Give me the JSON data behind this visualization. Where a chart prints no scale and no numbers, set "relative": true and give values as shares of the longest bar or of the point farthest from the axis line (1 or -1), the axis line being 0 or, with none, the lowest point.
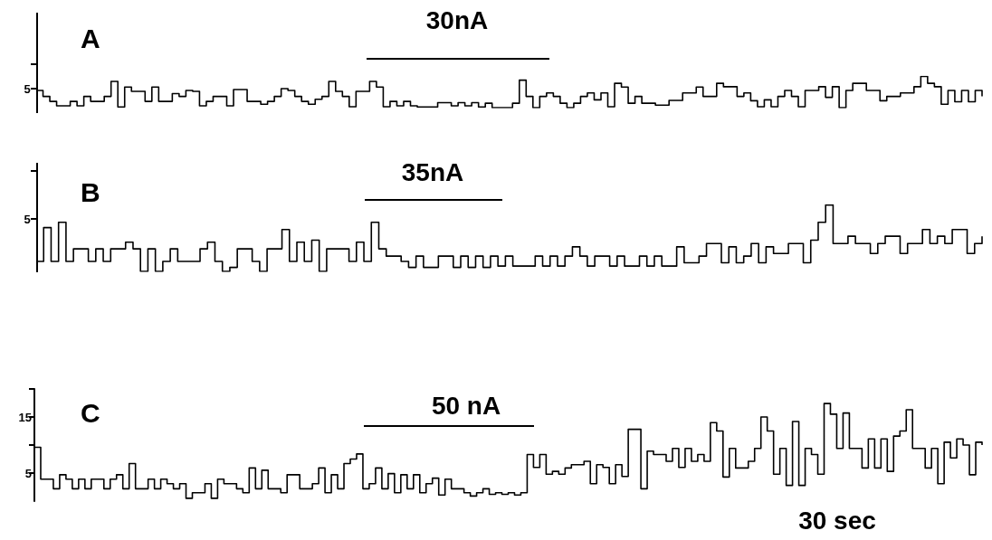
{
  "chart_data": [
    {
      "type": "step",
      "title": "A",
      "annotations": [
        "30nA",
        "5"
      ],
      "marker": "none",
      "grid": false,
      "tick_labels": false,
      "relative": true,
      "categories": [
        null,
        null,
        null,
        null,
        null,
        null,
        null,
        null,
        null,
        null,
        null,
        null,
        null,
        null,
        null,
        null,
        null,
        null,
        null,
        null,
        null,
        null,
        null,
        null,
        null,
        null,
        null,
        null,
        null,
        null,
        null,
        null,
        null,
        null,
        null,
        null,
        null,
        null,
        null,
        null,
        null,
        null,
        null,
        null,
        null,
        null,
        null,
        null,
        null,
        null,
        null,
        null,
        null,
        null,
        null,
        null,
        null,
        null,
        null,
        null,
        null,
        null,
        null,
        null,
        null,
        null,
        null,
        null,
        null,
        null,
        null,
        null,
        null,
        null,
        null,
        null,
        null,
        null,
        null,
        null,
        null,
        null,
        null,
        null,
        null,
        null,
        null,
        null,
        null,
        null,
        null,
        null,
        null,
        null,
        null,
        null,
        null,
        null,
        null,
        null,
        null,
        null,
        null,
        null,
        null,
        null,
        null,
        null,
        null,
        null,
        null,
        null,
        null,
        null,
        null,
        null,
        null,
        null,
        null,
        null,
        null,
        null,
        null,
        null,
        null,
        null,
        null,
        null,
        null,
        null,
        null,
        null,
        null,
        null,
        null,
        null,
        null,
        null,
        null,
        null
      ],
      "series": [
        {
          "color": "#000000",
          "values": [
            0.55,
            0.36,
            0.2,
            0.06,
            0.06,
            0.2,
            0.06,
            0.36,
            0.2,
            0.2,
            0.36,
            0.84,
            0.02,
            0.66,
            0.52,
            0.52,
            0.2,
            0.66,
            0.2,
            0.2,
            0.45,
            0.36,
            0.55,
            0.52,
            0.06,
            0.2,
            0.36,
            0.36,
            0.06,
            0.58,
            0.58,
            0.2,
            0.2,
            0.11,
            0.2,
            0.36,
            0.61,
            0.55,
            0.36,
            0.2,
            0.11,
            0.27,
            0.36,
            0.84,
            0.52,
            0.36,
            0.03,
            0.52,
            0.52,
            0.84,
            0.66,
            0.03,
            0.2,
            0.06,
            0.2,
            0.06,
            0.02,
            0.02,
            0.02,
            0.16,
            0.16,
            0.06,
            0.16,
            0.06,
            0.16,
            0.02,
            0.14,
            0,
            0,
            0,
            0.14,
            0.88,
            0.36,
            0,
            0.36,
            0.47,
            0.36,
            0.14,
            0,
            0.14,
            0.36,
            0.47,
            0.25,
            0.47,
            0.03,
            0.78,
            0.66,
            0.14,
            0.36,
            0.14,
            0.14,
            0.08,
            0.08,
            0.23,
            0.23,
            0.47,
            0.47,
            0.66,
            0.36,
            0.36,
            0.78,
            0.67,
            0.67,
            0.36,
            0.47,
            0.22,
            0.03,
            0.25,
            0.03,
            0.36,
            0.55,
            0.36,
            0.03,
            0.55,
            0.55,
            0.67,
            0.33,
            0.67,
            0,
            0.55,
            0.78,
            0.78,
            0.55,
            0.55,
            0.22,
            0.36,
            0.36,
            0.47,
            0.47,
            0.67,
            1,
            0.78,
            0.67,
            0.11,
            0.55,
            0.19,
            0.55,
            0.19,
            0.55,
            0.36
          ]
        }
      ]
    },
    {
      "type": "step",
      "title": "B",
      "annotations": [
        "35nA",
        "5"
      ],
      "marker": "none",
      "grid": false,
      "tick_labels": false,
      "relative": true,
      "categories": [
        null,
        null,
        null,
        null,
        null,
        null,
        null,
        null,
        null,
        null,
        null,
        null,
        null,
        null,
        null,
        null,
        null,
        null,
        null,
        null,
        null,
        null,
        null,
        null,
        null,
        null,
        null,
        null,
        null,
        null,
        null,
        null,
        null,
        null,
        null,
        null,
        null,
        null,
        null,
        null,
        null,
        null,
        null,
        null,
        null,
        null,
        null,
        null,
        null,
        null,
        null,
        null,
        null,
        null,
        null,
        null,
        null,
        null,
        null,
        null,
        null,
        null,
        null,
        null,
        null,
        null,
        null,
        null,
        null,
        null,
        null,
        null,
        null,
        null,
        null,
        null,
        null,
        null,
        null,
        null,
        null,
        null,
        null,
        null,
        null,
        null,
        null,
        null,
        null,
        null,
        null,
        null,
        null,
        null,
        null,
        null,
        null,
        null,
        null,
        null,
        null,
        null,
        null,
        null,
        null,
        null,
        null,
        null,
        null,
        null,
        null,
        null,
        null,
        null,
        null,
        null,
        null,
        null,
        null,
        null,
        null,
        null,
        null,
        null,
        null,
        null,
        null,
        null
      ],
      "series": [
        {
          "color": "#000000",
          "values": [
            0.15,
            0.66,
            0.15,
            0.74,
            0.15,
            0.34,
            0.34,
            0.15,
            0.34,
            0.15,
            0.34,
            0.34,
            0.44,
            0.34,
            0,
            0.34,
            0,
            0.15,
            0.34,
            0.15,
            0.15,
            0.15,
            0.34,
            0.44,
            0.15,
            0,
            0.06,
            0.34,
            0.34,
            0.15,
            0,
            0.34,
            0.34,
            0.63,
            0.15,
            0.44,
            0.15,
            0.47,
            0,
            0.34,
            0.34,
            0.34,
            0.15,
            0.44,
            0.15,
            0.74,
            0.34,
            0.23,
            0.23,
            0.15,
            0.06,
            0.23,
            0.06,
            0.06,
            0.23,
            0.23,
            0.06,
            0.23,
            0.06,
            0.23,
            0.06,
            0.23,
            0.08,
            0.23,
            0.08,
            0.08,
            0.08,
            0.23,
            0.08,
            0.23,
            0.08,
            0.23,
            0.37,
            0.23,
            0.08,
            0.23,
            0.23,
            0.08,
            0.23,
            0.08,
            0.08,
            0.23,
            0.08,
            0.23,
            0.08,
            0.08,
            0.37,
            0.13,
            0.13,
            0.23,
            0.42,
            0.42,
            0.13,
            0.37,
            0.13,
            0.23,
            0.42,
            0.13,
            0.37,
            0.27,
            0.27,
            0.42,
            0.42,
            0.13,
            0.47,
            0.74,
            1,
            0.42,
            0.42,
            0.53,
            0.42,
            0.42,
            0.27,
            0.42,
            0.53,
            0.53,
            0.27,
            0.42,
            0.42,
            0.63,
            0.42,
            0.53,
            0.42,
            0.63,
            0.63,
            0.27,
            0.42,
            0.53
          ]
        }
      ]
    },
    {
      "type": "step",
      "title": "C",
      "annotations": [
        "50 nA",
        "30 sec"
      ],
      "marker": "none",
      "grid": false,
      "tick_labels": "y",
      "ylim": [
        0,
        20
      ],
      "yticks": [
        5,
        {
          "value": 10,
          "label": null
        },
        15,
        {
          "value": 20,
          "label": null
        }
      ],
      "categories": [
        null,
        null,
        null,
        null,
        null,
        null,
        null,
        null,
        null,
        null,
        null,
        null,
        null,
        null,
        null,
        null,
        null,
        null,
        null,
        null,
        null,
        null,
        null,
        null,
        null,
        null,
        null,
        null,
        null,
        null,
        null,
        null,
        null,
        null,
        null,
        null,
        null,
        null,
        null,
        null,
        null,
        null,
        null,
        null,
        null,
        null,
        null,
        null,
        null,
        null,
        null,
        null,
        null,
        null,
        null,
        null,
        null,
        null,
        null,
        null,
        null,
        null,
        null,
        null,
        null,
        null,
        null,
        null,
        null,
        null,
        null,
        null,
        null,
        null,
        null,
        null,
        null,
        null,
        null,
        null,
        null,
        null,
        null,
        null,
        null,
        null,
        null,
        null,
        null,
        null,
        null,
        null,
        null,
        null,
        null,
        null,
        null,
        null,
        null,
        null,
        null,
        null,
        null,
        null,
        null,
        null,
        null,
        null,
        null,
        null,
        null,
        null,
        null,
        null,
        null,
        null,
        null,
        null,
        null,
        null,
        null,
        null,
        null,
        null,
        null,
        null,
        null,
        null,
        null,
        null,
        null,
        null,
        null,
        null,
        null,
        null,
        null,
        null,
        null,
        null,
        null,
        null,
        null,
        null,
        null,
        null,
        null,
        null,
        null,
        null,
        null
      ],
      "series": [
        {
          "color": "#000000",
          "values": [
            9.6,
            3.9,
            3.9,
            2.2,
            4.7,
            3.9,
            2.2,
            3.9,
            2.2,
            3.9,
            3.9,
            2.2,
            3.9,
            4.7,
            2.2,
            6.7,
            2.2,
            2.2,
            3.9,
            2.2,
            3.9,
            3.1,
            2.2,
            3.1,
            0.5,
            1.5,
            1.5,
            3.1,
            0.5,
            3.9,
            3.1,
            3.1,
            2.2,
            1.5,
            5.9,
            2.2,
            5.5,
            2.2,
            2.2,
            1.5,
            4.7,
            4.7,
            2.2,
            2.2,
            3.1,
            5.9,
            1.5,
            4.7,
            2.2,
            6.7,
            7.5,
            8.4,
            2.2,
            3.1,
            5.9,
            2.2,
            4.9,
            1.5,
            4.7,
            2.2,
            4.7,
            1.5,
            3.1,
            4.1,
            1.1,
            3.9,
            2.2,
            2.2,
            1.5,
            0.9,
            1.5,
            2.2,
            1.2,
            1.5,
            1.2,
            1.5,
            1.1,
            1.5,
            8.3,
            6,
            8.3,
            4.8,
            5.3,
            4.8,
            5.9,
            6.5,
            6.5,
            7.1,
            3.1,
            6.5,
            6,
            3.1,
            6.5,
            4.4,
            12.8,
            12.8,
            2.2,
            8.9,
            8.3,
            8.3,
            7.1,
            9.4,
            6,
            9.4,
            7.1,
            8.3,
            7.1,
            14,
            12.5,
            4.3,
            9.4,
            5.9,
            5.9,
            7.1,
            9.4,
            15,
            12.5,
            4.8,
            9.4,
            2.8,
            14.2,
            2.8,
            9.4,
            8.3,
            4.8,
            17.4,
            15.5,
            9.4,
            15.7,
            9.4,
            9.4,
            5.9,
            11.1,
            5.9,
            11.1,
            5.3,
            11.6,
            12.5,
            16.3,
            9.4,
            9.4,
            5.9,
            9.4,
            3.1,
            10.5,
            7.7,
            11.1,
            10,
            4.7,
            10.5,
            10
          ]
        }
      ]
    }
  ]
}
